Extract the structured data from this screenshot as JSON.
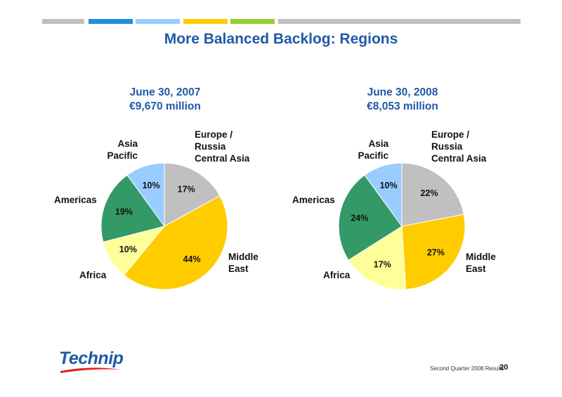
{
  "title": "More Balanced Backlog: Regions",
  "colors": {
    "title": "#1f5aa6",
    "slices": {
      "europe": "#c0c0c0",
      "middle_east": "#ffcc00",
      "africa": "#ffff99",
      "americas": "#339966",
      "asia": "#99ccff"
    },
    "topbar": [
      "#bfbfbf",
      "#1e8fe0",
      "#99ccff",
      "#ffcc00",
      "#99cc33",
      "#bfbfbf"
    ]
  },
  "chart_data": [
    {
      "type": "pie",
      "title": "June 30, 2007",
      "subtitle": "€9,670 million",
      "slices": [
        {
          "key": "europe",
          "label_lines": [
            "Europe /",
            "Russia",
            "Central Asia"
          ],
          "value": 17,
          "value_label": "17%"
        },
        {
          "key": "middle_east",
          "label_lines": [
            "Middle",
            "East"
          ],
          "value": 44,
          "value_label": "44%"
        },
        {
          "key": "africa",
          "label_lines": [
            "Africa"
          ],
          "value": 10,
          "value_label": "10%"
        },
        {
          "key": "americas",
          "label_lines": [
            "Americas"
          ],
          "value": 19,
          "value_label": "19%"
        },
        {
          "key": "asia",
          "label_lines": [
            "Asia",
            "Pacific"
          ],
          "value": 10,
          "value_label": "10%"
        }
      ]
    },
    {
      "type": "pie",
      "title": "June 30, 2008",
      "subtitle": "€8,053 million",
      "slices": [
        {
          "key": "europe",
          "label_lines": [
            "Europe /",
            "Russia",
            "Central Asia"
          ],
          "value": 22,
          "value_label": "22%"
        },
        {
          "key": "middle_east",
          "label_lines": [
            "Middle",
            "East"
          ],
          "value": 27,
          "value_label": "27%"
        },
        {
          "key": "africa",
          "label_lines": [
            "Africa"
          ],
          "value": 17,
          "value_label": "17%"
        },
        {
          "key": "americas",
          "label_lines": [
            "Americas"
          ],
          "value": 24,
          "value_label": "24%"
        },
        {
          "key": "asia",
          "label_lines": [
            "Asia",
            "Pacific"
          ],
          "value": 10,
          "value_label": "10%"
        }
      ]
    }
  ],
  "logo": {
    "text": "Technip"
  },
  "footer": {
    "text": "Second Quarter 2008 Results",
    "page": "20"
  }
}
